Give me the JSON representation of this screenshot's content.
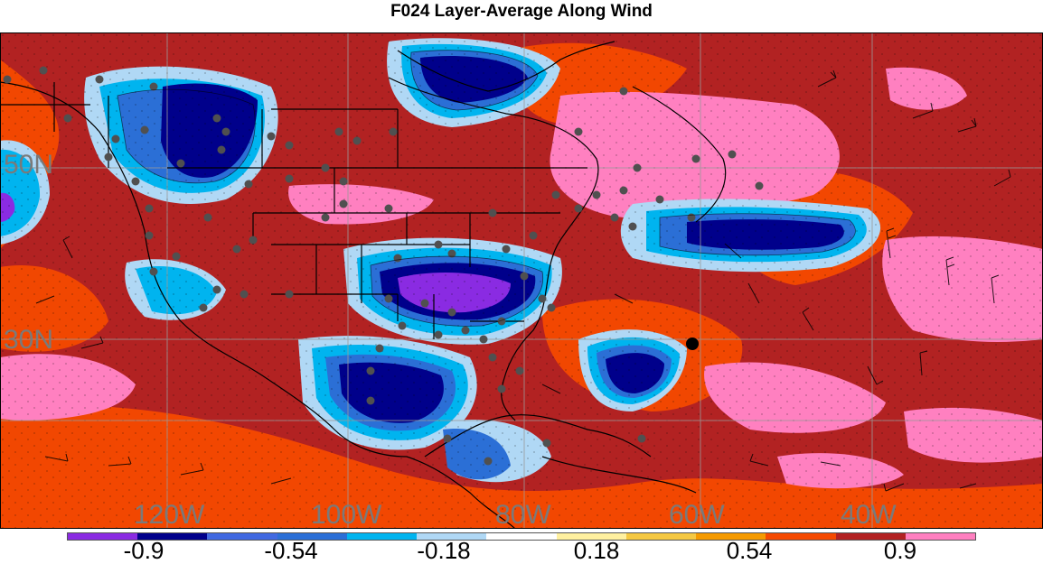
{
  "title": "F024 Layer-Average Along Wind",
  "map": {
    "lon_labels": [
      "120W",
      "100W",
      "80W",
      "60W",
      "40W"
    ],
    "lat_labels": [
      "50N",
      "30N"
    ],
    "colors": {
      "c_neg_1_08": "#8a2be2",
      "c_neg_0_9": "#00008b",
      "c_neg_0_72": "#4169e1",
      "c_neg_0_54": "#2b6fd6",
      "c_neg_0_36": "#00b4ef",
      "c_neg_0_18": "#b0d8f5",
      "c_zero": "#ffffff",
      "c_0_18": "#fff0a0",
      "c_0_36": "#f5c842",
      "c_0_54": "#f59a00",
      "c_0_72": "#f54a00",
      "c_0_9": "#b22222",
      "c_1_08": "#ff80c0",
      "coast": "#000000",
      "grid": "#9a9a9a",
      "marker": "#505050"
    }
  },
  "colorbar": {
    "colors": [
      "#8a2be2",
      "#00008b",
      "#4169e1",
      "#2b6fd6",
      "#00b4ef",
      "#b0d8f5",
      "#ffffff",
      "#fff0a0",
      "#f5c842",
      "#f59a00",
      "#f54a00",
      "#b22222",
      "#ff80c0"
    ],
    "labels": [
      "-0.9",
      "-0.54",
      "-0.18",
      "0.18",
      "0.54",
      "0.9"
    ]
  }
}
